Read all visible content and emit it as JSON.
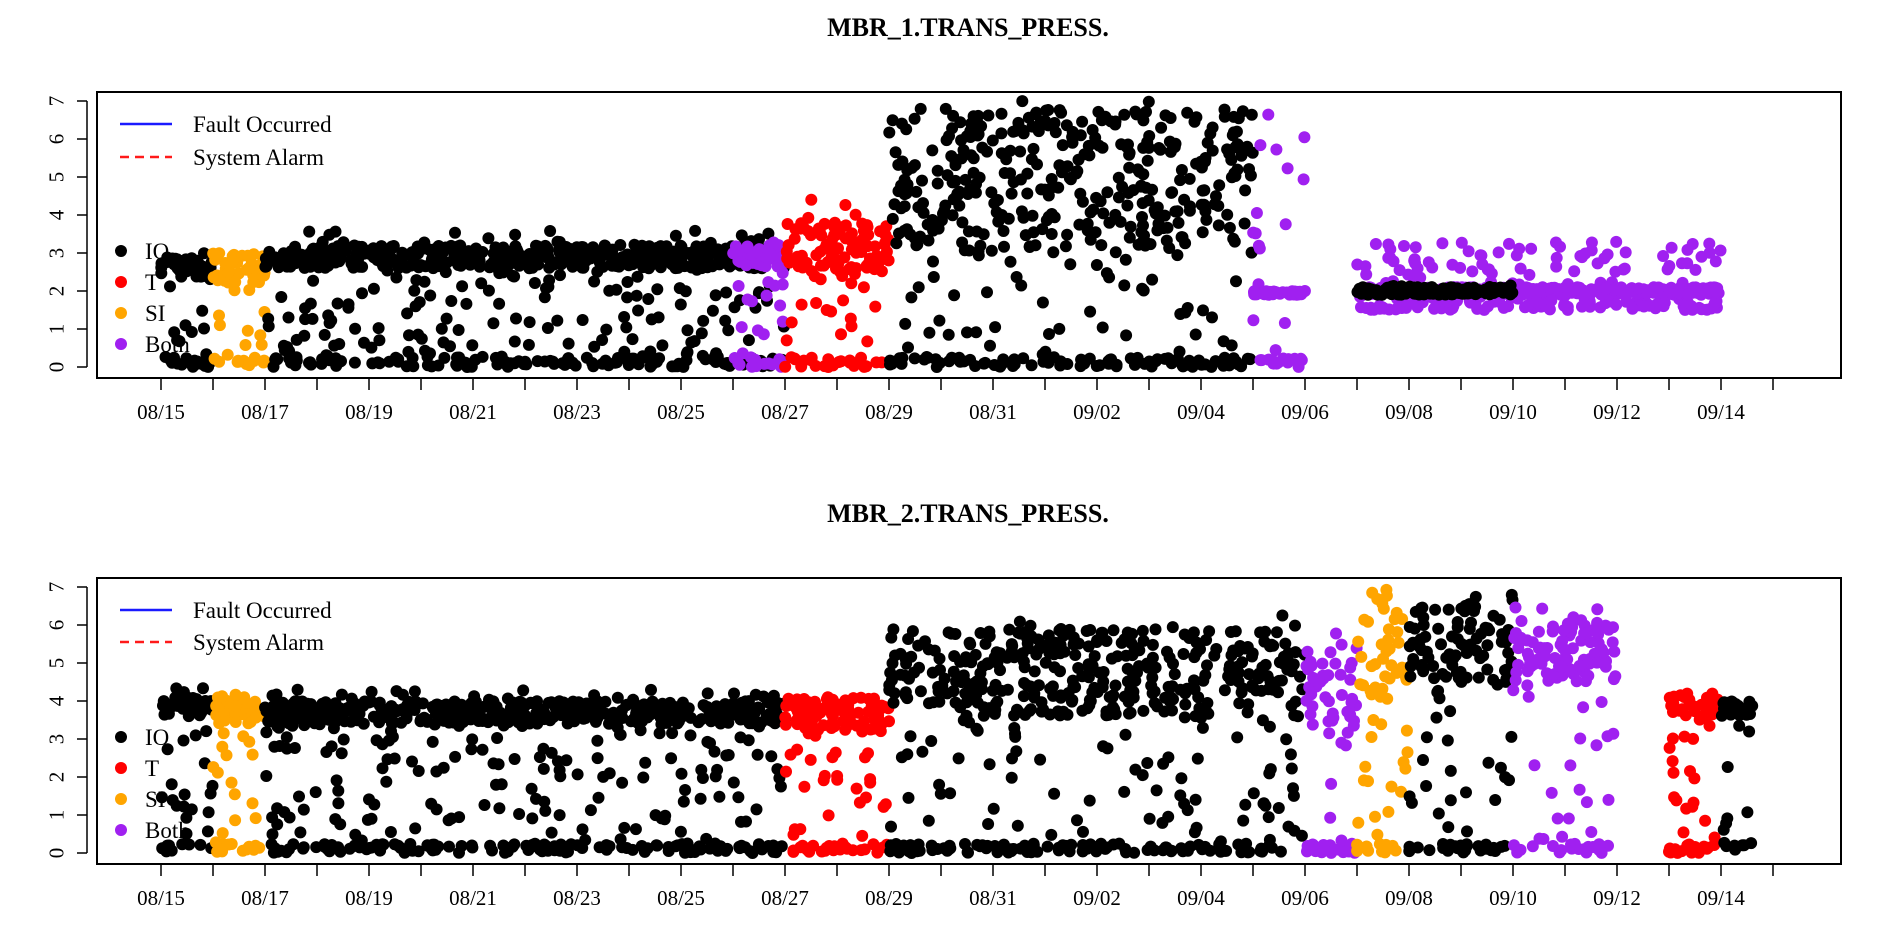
{
  "chart_data": [
    {
      "type": "scatter",
      "title": "MBR_1.TRANS_PRESS.",
      "xlabel": "",
      "ylabel": "",
      "x_ticks": [
        "08/15",
        "08/17",
        "08/19",
        "08/21",
        "08/23",
        "08/25",
        "08/27",
        "08/29",
        "08/31",
        "09/02",
        "09/04",
        "09/06",
        "09/08",
        "09/10",
        "09/12",
        "09/14"
      ],
      "y_ticks": [
        "0",
        "1",
        "2",
        "3",
        "4",
        "5",
        "6",
        "7"
      ],
      "ylim": [
        0,
        7
      ],
      "legend_lines": [
        {
          "label": "Fault Occurred",
          "color": "#1a1aff",
          "style": "solid"
        },
        {
          "label": "System Alarm",
          "color": "#ff1a1a",
          "style": "dashed"
        }
      ],
      "legend_points": [
        {
          "label": "IO",
          "color": "#000000"
        },
        {
          "label": "T",
          "color": "#ff0000"
        },
        {
          "label": "SI",
          "color": "#ffa500"
        },
        {
          "label": "Both",
          "color": "#a020f0"
        }
      ],
      "series_segments": [
        {
          "state": "IO",
          "x_start": "08/15",
          "x_end": "08/16",
          "y_range": [
            0,
            3.0
          ],
          "band": [
            2.3,
            2.9
          ]
        },
        {
          "state": "SI",
          "x_start": "08/16",
          "x_end": "08/17",
          "y_range": [
            0,
            3.1
          ],
          "band": [
            2.2,
            3.0
          ]
        },
        {
          "state": "IO",
          "x_start": "08/17",
          "x_end": "08/27",
          "y_range": [
            0,
            3.6
          ],
          "band": [
            2.6,
            3.2
          ]
        },
        {
          "state": "Both",
          "x_start": "08/26",
          "x_end": "08/27",
          "y_range": [
            0,
            3.3
          ],
          "band": [
            2.6,
            3.2
          ]
        },
        {
          "state": "T",
          "x_start": "08/27",
          "x_end": "08/29",
          "y_range": [
            0,
            4.4
          ],
          "band": [
            2.5,
            3.8
          ]
        },
        {
          "state": "IO",
          "x_start": "08/29",
          "x_end": "09/05",
          "y_range": [
            0,
            7.0
          ],
          "band": [
            3.0,
            6.8
          ]
        },
        {
          "state": "Both",
          "x_start": "09/05",
          "x_end": "09/06",
          "y_range": [
            0,
            6.9
          ],
          "band": [
            1.9,
            2.0
          ]
        },
        {
          "state": "Both",
          "x_start": "09/07",
          "x_end": "09/14",
          "y_range": [
            1.5,
            3.3
          ],
          "band": [
            1.9,
            2.1
          ]
        },
        {
          "state": "IO",
          "x_start": "09/07",
          "x_end": "09/10",
          "y_range": [
            1.9,
            2.1
          ],
          "band": [
            1.9,
            2.1
          ]
        }
      ]
    },
    {
      "type": "scatter",
      "title": "MBR_2.TRANS_PRESS.",
      "xlabel": "",
      "ylabel": "",
      "x_ticks": [
        "08/15",
        "08/17",
        "08/19",
        "08/21",
        "08/23",
        "08/25",
        "08/27",
        "08/29",
        "08/31",
        "09/02",
        "09/04",
        "09/06",
        "09/08",
        "09/10",
        "09/12",
        "09/14"
      ],
      "y_ticks": [
        "0",
        "1",
        "2",
        "3",
        "4",
        "5",
        "6",
        "7"
      ],
      "ylim": [
        0,
        7
      ],
      "legend_lines": [
        {
          "label": "Fault Occurred",
          "color": "#1a1aff",
          "style": "solid"
        },
        {
          "label": "System Alarm",
          "color": "#ff1a1a",
          "style": "dashed"
        }
      ],
      "legend_points": [
        {
          "label": "IO",
          "color": "#000000"
        },
        {
          "label": "T",
          "color": "#ff0000"
        },
        {
          "label": "SI",
          "color": "#ffa500"
        },
        {
          "label": "Both",
          "color": "#a020f0"
        }
      ],
      "series_segments": [
        {
          "state": "IO",
          "x_start": "08/15",
          "x_end": "08/16",
          "y_range": [
            0,
            4.4
          ],
          "band": [
            3.6,
            4.1
          ]
        },
        {
          "state": "SI",
          "x_start": "08/16",
          "x_end": "08/17",
          "y_range": [
            0,
            4.5
          ],
          "band": [
            3.4,
            4.1
          ]
        },
        {
          "state": "IO",
          "x_start": "08/17",
          "x_end": "08/27",
          "y_range": [
            0,
            4.3
          ],
          "band": [
            3.4,
            4.0
          ]
        },
        {
          "state": "T",
          "x_start": "08/27",
          "x_end": "08/29",
          "y_range": [
            0,
            4.3
          ],
          "band": [
            3.2,
            4.1
          ]
        },
        {
          "state": "IO",
          "x_start": "08/29",
          "x_end": "09/06",
          "y_range": [
            0,
            6.3
          ],
          "band": [
            3.6,
            5.9
          ]
        },
        {
          "state": "Both",
          "x_start": "09/06",
          "x_end": "09/07",
          "y_range": [
            0,
            5.8
          ],
          "band": [
            3.0,
            5.5
          ]
        },
        {
          "state": "SI",
          "x_start": "09/07",
          "x_end": "09/08",
          "y_range": [
            0,
            7.0
          ],
          "band": [
            4.0,
            7.0
          ]
        },
        {
          "state": "IO",
          "x_start": "09/08",
          "x_end": "09/10",
          "y_range": [
            0,
            7.0
          ],
          "band": [
            4.5,
            6.5
          ]
        },
        {
          "state": "Both",
          "x_start": "09/10",
          "x_end": "09/12",
          "y_range": [
            0,
            7.0
          ],
          "band": [
            4.5,
            6.0
          ]
        },
        {
          "state": "T",
          "x_start": "09/13",
          "x_end": "09/14",
          "y_range": [
            0,
            4.2
          ],
          "band": [
            3.6,
            4.2
          ]
        },
        {
          "state": "IO",
          "x_start": "09/14",
          "x_end": "09/14",
          "y_range": [
            0,
            4.0
          ],
          "band": [
            3.6,
            4.0
          ]
        }
      ]
    }
  ]
}
